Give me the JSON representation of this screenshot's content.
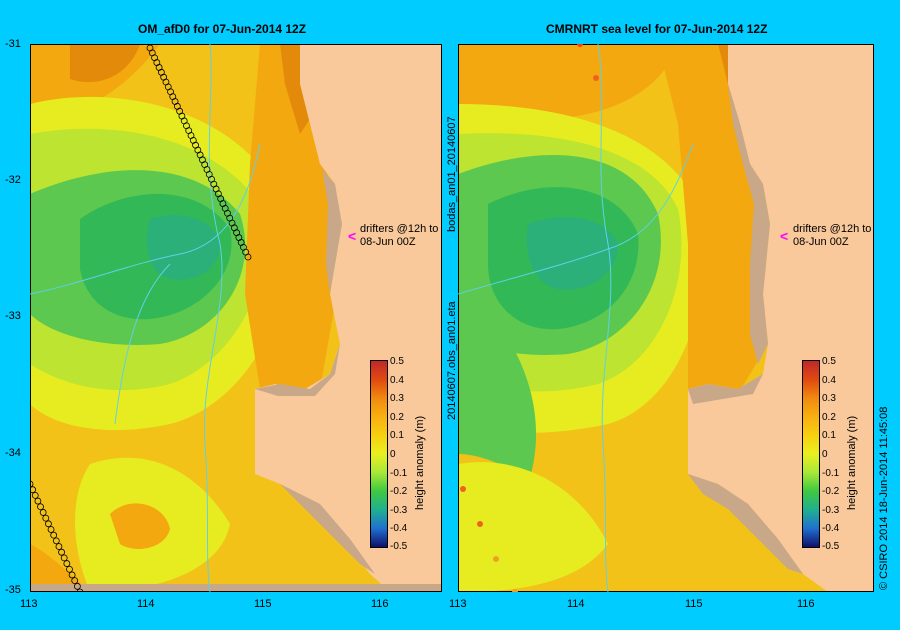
{
  "left_panel": {
    "title": "OM_afD0 for 07-Jun-2014 12Z",
    "drifter_note_line1": "drifters @12h to",
    "drifter_note_line2": "08-Jun 00Z"
  },
  "right_panel": {
    "title": "CMRNRT sea level  for 07-Jun-2014 12Z",
    "drifter_note_line1": "drifters @12h to",
    "drifter_note_line2": "08-Jun 00Z",
    "side_label_top": "bodas_an01_20140607",
    "side_label_bottom": "20140607.obs_an01.eta"
  },
  "axes": {
    "lat_ticks": [
      "-31",
      "-32",
      "-33",
      "-34",
      "-35"
    ],
    "lon_ticks": [
      "113",
      "114",
      "115",
      "116"
    ]
  },
  "colorbar": {
    "label": "height anomaly (m)",
    "ticks": [
      "0.5",
      "0.4",
      "0.3",
      "0.2",
      "0.1",
      "0",
      "-0.1",
      "-0.2",
      "-0.3",
      "-0.4",
      "-0.5"
    ],
    "colors": [
      "#c0282a",
      "#e04a10",
      "#f08a10",
      "#f8b010",
      "#f8d010",
      "#e8f020",
      "#a8e838",
      "#40c840",
      "#20b090",
      "#2070d0",
      "#1a2a9a",
      "#10106a"
    ]
  },
  "credit": "CSIRO 2014   18-Jun-2014 11:45:08",
  "credit_symbol": "©"
}
